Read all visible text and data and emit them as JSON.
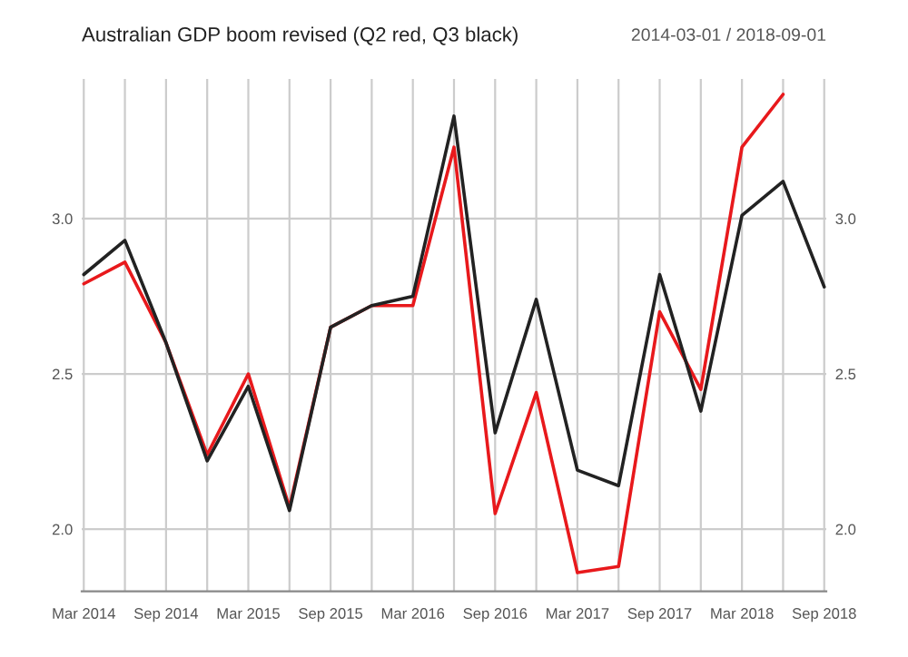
{
  "chart_data": {
    "type": "line",
    "title": "Australian GDP boom revised (Q2 red, Q3 black)",
    "subtitle": "2014-03-01 / 2018-09-01",
    "categories": [
      "Mar 2014",
      null,
      "Sep 2014",
      null,
      "Mar 2015",
      null,
      "Sep 2015",
      null,
      "Mar 2016",
      null,
      "Sep 2016",
      null,
      "Mar 2017",
      null,
      "Sep 2017",
      null,
      "Mar 2018",
      null,
      "Sep 2018"
    ],
    "series": [
      {
        "color": "#e8191c",
        "values": [
          2.79,
          2.86,
          2.6,
          2.24,
          2.5,
          2.07,
          2.65,
          2.72,
          2.72,
          3.23,
          2.05,
          2.44,
          1.86,
          1.88,
          2.7,
          2.45,
          3.23,
          3.4,
          null
        ]
      },
      {
        "color": "#222222",
        "values": [
          2.82,
          2.93,
          2.6,
          2.22,
          2.46,
          2.06,
          2.65,
          2.72,
          2.75,
          3.33,
          2.31,
          2.74,
          2.19,
          2.14,
          2.82,
          2.38,
          3.01,
          3.12,
          2.78
        ]
      }
    ],
    "ylim": [
      1.8,
      3.45
    ],
    "yticks": [
      {
        "value": 2.0,
        "label": "2.0"
      },
      {
        "value": 2.5,
        "label": "2.5"
      },
      {
        "value": 3.0,
        "label": "3.0"
      }
    ],
    "y2lim": [
      1.8,
      3.45
    ],
    "y2ticks": [
      {
        "value": 2.0,
        "label": "2.0"
      },
      {
        "value": 2.5,
        "label": "2.5"
      },
      {
        "value": 3.0,
        "label": "3.0"
      }
    ],
    "grid": true,
    "legend": false,
    "marker": "none",
    "line_style": "solid"
  }
}
